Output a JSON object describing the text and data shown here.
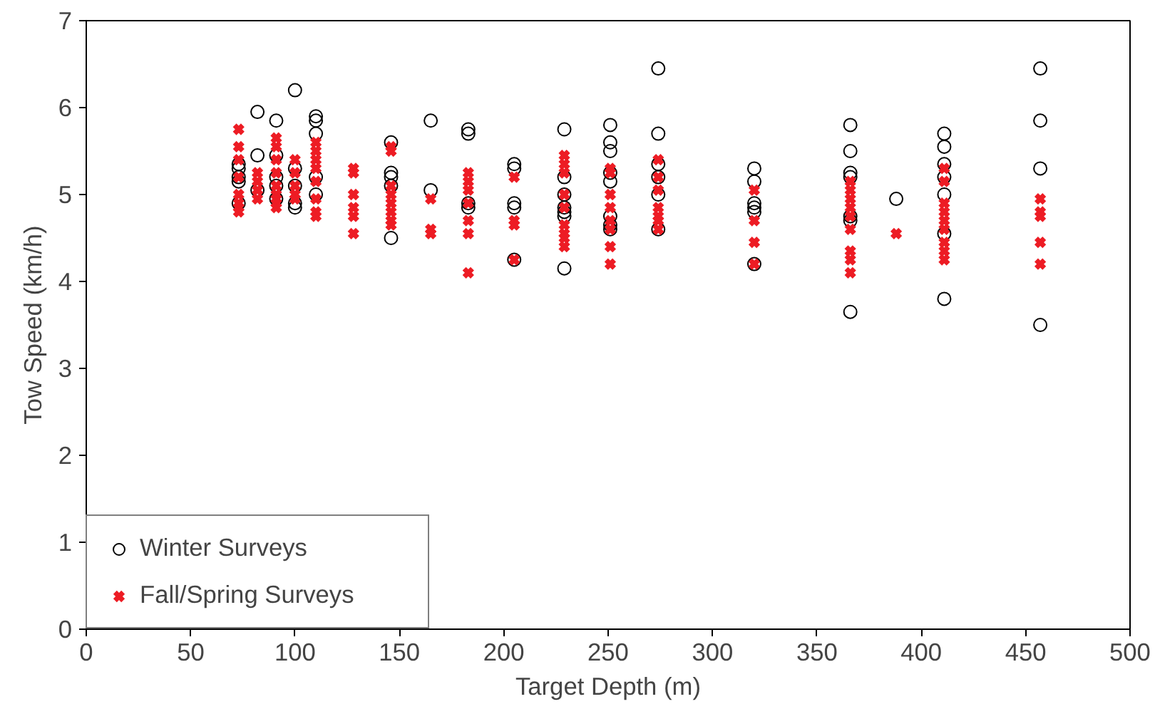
{
  "chart_data": {
    "type": "scatter",
    "xlabel": "Target Depth (m)",
    "ylabel": "Tow Speed (km/h)",
    "xlim": [
      0,
      500
    ],
    "ylim": [
      0,
      7
    ],
    "xticks": [
      0,
      50,
      100,
      150,
      200,
      250,
      300,
      350,
      400,
      450,
      500
    ],
    "yticks": [
      0,
      1,
      2,
      3,
      4,
      5,
      6,
      7
    ],
    "grid": false,
    "legend": "bottom left",
    "series": [
      {
        "name": "Winter Surveys",
        "color": "#000000",
        "marker": "circle",
        "x": [
          73,
          73,
          73,
          73,
          73,
          82,
          82,
          82,
          91,
          91,
          91,
          91,
          91,
          100,
          100,
          100,
          100,
          100,
          110,
          110,
          110,
          110,
          110,
          146,
          146,
          146,
          146,
          146,
          165,
          165,
          183,
          183,
          183,
          183,
          205,
          205,
          205,
          205,
          205,
          229,
          229,
          229,
          229,
          229,
          229,
          229,
          251,
          251,
          251,
          251,
          251,
          251,
          251,
          251,
          274,
          274,
          274,
          274,
          274,
          274,
          320,
          320,
          320,
          320,
          320,
          320,
          366,
          366,
          366,
          366,
          366,
          366,
          366,
          388,
          411,
          411,
          411,
          411,
          411,
          411,
          411,
          457,
          457,
          457,
          457
        ],
        "values": [
          5.35,
          5.3,
          5.2,
          5.15,
          4.9,
          5.95,
          5.45,
          5.05,
          5.85,
          5.45,
          5.2,
          5.1,
          4.95,
          6.2,
          5.3,
          5.1,
          4.9,
          4.85,
          5.9,
          5.85,
          5.7,
          5.2,
          5.0,
          5.6,
          5.25,
          5.2,
          5.1,
          4.5,
          5.85,
          5.05,
          5.75,
          5.7,
          4.9,
          4.85,
          5.35,
          5.3,
          4.9,
          4.85,
          4.25,
          5.75,
          5.2,
          5.0,
          4.85,
          4.8,
          4.75,
          4.15,
          5.8,
          5.6,
          5.5,
          5.25,
          5.15,
          4.75,
          4.65,
          4.6,
          6.45,
          5.7,
          5.35,
          5.2,
          5.0,
          4.6,
          5.3,
          5.15,
          4.9,
          4.85,
          4.8,
          4.2,
          5.8,
          5.5,
          5.25,
          5.2,
          4.75,
          4.7,
          3.65,
          4.95,
          5.7,
          5.55,
          5.35,
          5.2,
          5.0,
          4.55,
          3.8,
          6.45,
          5.85,
          5.3,
          3.5
        ]
      },
      {
        "name": "Fall/Spring Surveys",
        "color": "#ed1c24",
        "marker": "cross",
        "x": [
          73,
          73,
          73,
          73,
          73,
          73,
          73,
          73,
          82,
          82,
          82,
          82,
          91,
          91,
          91,
          91,
          91,
          91,
          91,
          91,
          91,
          100,
          100,
          100,
          100,
          100,
          110,
          110,
          110,
          110,
          110,
          110,
          110,
          110,
          128,
          128,
          128,
          128,
          128,
          128,
          146,
          146,
          146,
          146,
          146,
          146,
          146,
          146,
          165,
          165,
          165,
          183,
          183,
          183,
          183,
          183,
          183,
          183,
          205,
          205,
          205,
          205,
          229,
          229,
          229,
          229,
          229,
          229,
          229,
          229,
          229,
          251,
          251,
          251,
          251,
          251,
          251,
          251,
          251,
          274,
          274,
          274,
          274,
          274,
          274,
          274,
          320,
          320,
          320,
          320,
          366,
          366,
          366,
          366,
          366,
          366,
          366,
          366,
          366,
          388,
          411,
          411,
          411,
          411,
          411,
          411,
          411,
          411,
          411,
          457,
          457,
          457,
          457,
          457
        ],
        "values": [
          5.75,
          5.55,
          5.4,
          5.2,
          5.0,
          4.9,
          4.85,
          4.8,
          5.25,
          5.15,
          5.05,
          4.95,
          5.65,
          5.55,
          5.4,
          5.25,
          5.1,
          5.0,
          4.95,
          4.9,
          4.85,
          5.4,
          5.25,
          5.1,
          5.0,
          4.95,
          5.6,
          5.5,
          5.4,
          5.3,
          5.15,
          4.95,
          4.8,
          4.75,
          5.3,
          5.25,
          5.0,
          4.85,
          4.75,
          4.55,
          5.55,
          5.5,
          5.1,
          5.0,
          4.9,
          4.8,
          4.7,
          4.65,
          4.95,
          4.6,
          4.55,
          5.25,
          5.15,
          5.05,
          4.9,
          4.7,
          4.55,
          4.1,
          5.2,
          4.7,
          4.65,
          4.25,
          5.45,
          5.35,
          5.25,
          5.0,
          4.85,
          4.65,
          4.55,
          4.5,
          4.4,
          5.3,
          5.25,
          5.0,
          4.85,
          4.7,
          4.6,
          4.4,
          4.2,
          5.4,
          5.2,
          5.05,
          4.85,
          4.75,
          4.7,
          4.6,
          5.05,
          4.7,
          4.45,
          4.2,
          5.15,
          5.05,
          4.95,
          4.85,
          4.75,
          4.6,
          4.35,
          4.25,
          4.1,
          4.55,
          5.3,
          5.15,
          4.9,
          4.8,
          4.7,
          4.6,
          4.45,
          4.35,
          4.25,
          4.95,
          4.8,
          4.75,
          4.45,
          4.2
        ]
      }
    ]
  }
}
